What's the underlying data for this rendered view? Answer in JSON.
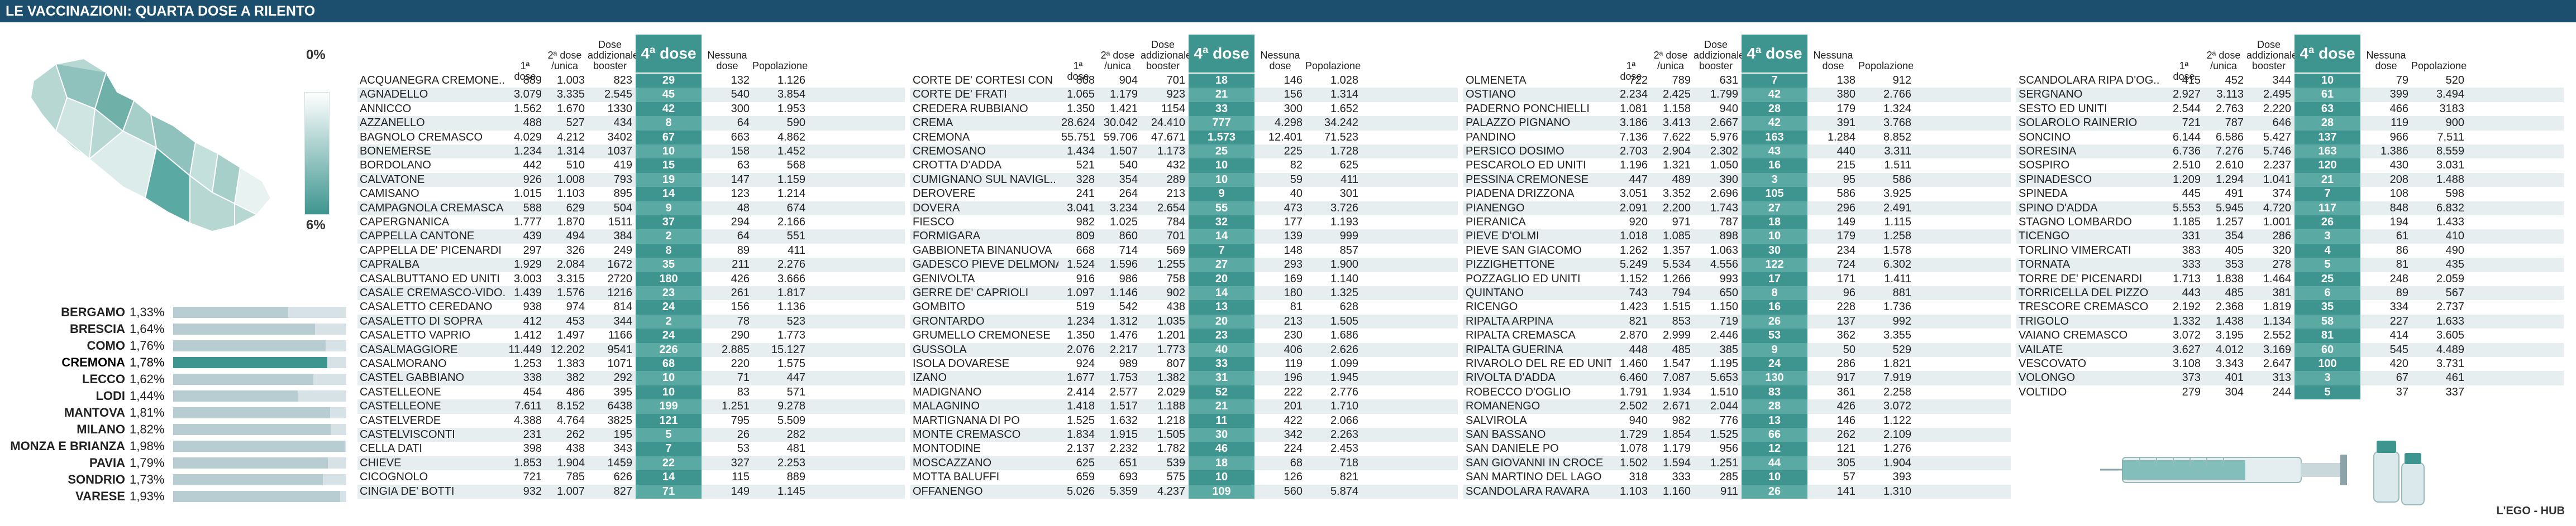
{
  "header": {
    "title": "LE VACCINAZIONI: QUARTA DOSE A RILENTO"
  },
  "legend": {
    "min": "0%",
    "max": "6%"
  },
  "credit": "L'EGO - HUB",
  "chart_data": {
    "type": "table",
    "columns": [
      "",
      "1ª dose",
      "2ª dose /unica",
      "Dose addizionale/ booster",
      "4ª dose",
      "Nessuna dose",
      "Popolazione"
    ],
    "provinces": [
      {
        "name": "BERGAMO",
        "value": "1,33%",
        "pct": 1.33
      },
      {
        "name": "BRESCIA",
        "value": "1,64%",
        "pct": 1.64
      },
      {
        "name": "COMO",
        "value": "1,76%",
        "pct": 1.76
      },
      {
        "name": "CREMONA",
        "value": "1,78%",
        "pct": 1.78,
        "highlight": true
      },
      {
        "name": "LECCO",
        "value": "1,62%",
        "pct": 1.62
      },
      {
        "name": "LODI",
        "value": "1,44%",
        "pct": 1.44
      },
      {
        "name": "MANTOVA",
        "value": "1,81%",
        "pct": 1.81
      },
      {
        "name": "MILANO",
        "value": "1,82%",
        "pct": 1.82
      },
      {
        "name": "MONZA E BRIANZA",
        "value": "1,98%",
        "pct": 1.98
      },
      {
        "name": "PAVIA",
        "value": "1,79%",
        "pct": 1.79
      },
      {
        "name": "SONDRIO",
        "value": "1,73%",
        "pct": 1.73
      },
      {
        "name": "VARESE",
        "value": "1,93%",
        "pct": 1.93
      }
    ],
    "blocks": [
      [
        [
          "Acquanegra Cremone..",
          "889",
          "1.003",
          "823",
          "29",
          "132",
          "1.126"
        ],
        [
          "Agnadello",
          "3.079",
          "3.335",
          "2.545",
          "45",
          "540",
          "3.854"
        ],
        [
          "Annicco",
          "1.562",
          "1.670",
          "1330",
          "42",
          "300",
          "1.953"
        ],
        [
          "Azzanello",
          "488",
          "527",
          "434",
          "8",
          "64",
          "590"
        ],
        [
          "Bagnolo Cremasco",
          "4.029",
          "4.212",
          "3402",
          "67",
          "663",
          "4.862"
        ],
        [
          "Bonemerse",
          "1.234",
          "1.314",
          "1037",
          "10",
          "158",
          "1.452"
        ],
        [
          "Bordolano",
          "442",
          "510",
          "419",
          "15",
          "63",
          "568"
        ],
        [
          "Calvatone",
          "926",
          "1.008",
          "793",
          "19",
          "147",
          "1.159"
        ],
        [
          "Camisano",
          "1.015",
          "1.103",
          "895",
          "14",
          "123",
          "1.214"
        ],
        [
          "Campagnola Cremasca",
          "588",
          "629",
          "504",
          "9",
          "48",
          "674"
        ],
        [
          "Capergnanica",
          "1.777",
          "1.870",
          "1511",
          "37",
          "294",
          "2.166"
        ],
        [
          "Cappella Cantone",
          "439",
          "494",
          "384",
          "2",
          "64",
          "551"
        ],
        [
          "Cappella de' Picenardi",
          "297",
          "326",
          "249",
          "8",
          "89",
          "411"
        ],
        [
          "Capralba",
          "1.929",
          "2.084",
          "1672",
          "35",
          "211",
          "2.276"
        ],
        [
          "Casalbuttano ed Uniti",
          "3.003",
          "3.315",
          "2720",
          "180",
          "426",
          "3.666"
        ],
        [
          "Casale Cremasco-Vido..",
          "1.439",
          "1.576",
          "1216",
          "23",
          "261",
          "1.817"
        ],
        [
          "Casaletto Ceredano",
          "938",
          "974",
          "814",
          "24",
          "156",
          "1.136"
        ],
        [
          "Casaletto di Sopra",
          "412",
          "453",
          "344",
          "2",
          "78",
          "523"
        ],
        [
          "Casaletto Vaprio",
          "1.412",
          "1.497",
          "1166",
          "24",
          "290",
          "1.773"
        ],
        [
          "Casalmaggiore",
          "11.449",
          "12.202",
          "9541",
          "226",
          "2.885",
          "15.127"
        ],
        [
          "Casalmorano",
          "1.253",
          "1.383",
          "1071",
          "68",
          "220",
          "1.575"
        ],
        [
          "Castel Gabbiano",
          "338",
          "382",
          "292",
          "10",
          "71",
          "447"
        ],
        [
          "Castelleone",
          "454",
          "486",
          "395",
          "10",
          "83",
          "571"
        ],
        [
          "Castelleone",
          "7.611",
          "8.152",
          "6438",
          "199",
          "1.251",
          "9.278"
        ],
        [
          "Castelverde",
          "4.388",
          "4.764",
          "3825",
          "121",
          "795",
          "5.509"
        ],
        [
          "Castelvisconti",
          "231",
          "262",
          "195",
          "5",
          "26",
          "282"
        ],
        [
          "Cella Dati",
          "398",
          "438",
          "343",
          "7",
          "53",
          "481"
        ],
        [
          "Chieve",
          "1.853",
          "1.904",
          "1459",
          "22",
          "327",
          "2.253"
        ],
        [
          "Cicognolo",
          "721",
          "785",
          "626",
          "14",
          "115",
          "889"
        ],
        [
          "Cingia de' Botti",
          "932",
          "1.007",
          "827",
          "71",
          "149",
          "1.145"
        ]
      ],
      [
        [
          "Corte de' Cortesi con",
          "808",
          "904",
          "701",
          "18",
          "146",
          "1.028"
        ],
        [
          "Corte de' Frati",
          "1.065",
          "1.179",
          "923",
          "21",
          "156",
          "1.314"
        ],
        [
          "Credera Rubbiano",
          "1.350",
          "1.421",
          "1154",
          "33",
          "300",
          "1.652"
        ],
        [
          "Crema",
          "28.624",
          "30.042",
          "24.410",
          "777",
          "4.298",
          "34.242"
        ],
        [
          "Cremona",
          "55.751",
          "59.706",
          "47.671",
          "1.573",
          "12.401",
          "71.523"
        ],
        [
          "Cremosano",
          "1.434",
          "1.507",
          "1.173",
          "25",
          "225",
          "1.728"
        ],
        [
          "Crotta d'Adda",
          "521",
          "540",
          "432",
          "10",
          "82",
          "625"
        ],
        [
          "Cumignano sul Navigl..",
          "328",
          "354",
          "289",
          "10",
          "59",
          "411"
        ],
        [
          "Derovere",
          "241",
          "264",
          "213",
          "9",
          "40",
          "301"
        ],
        [
          "Dovera",
          "3.041",
          "3.234",
          "2.654",
          "55",
          "473",
          "3.726"
        ],
        [
          "Fiesco",
          "982",
          "1.025",
          "784",
          "32",
          "177",
          "1.193"
        ],
        [
          "Formigara",
          "809",
          "860",
          "701",
          "14",
          "139",
          "999"
        ],
        [
          "Gabbioneta Binanuova",
          "668",
          "714",
          "569",
          "7",
          "148",
          "857"
        ],
        [
          "Gadesco Pieve Delmona",
          "1.524",
          "1.596",
          "1.255",
          "27",
          "293",
          "1.900"
        ],
        [
          "Genivolta",
          "916",
          "986",
          "758",
          "20",
          "169",
          "1.140"
        ],
        [
          "Gerre de' Caprioli",
          "1.097",
          "1.146",
          "902",
          "14",
          "180",
          "1.325"
        ],
        [
          "Gombito",
          "519",
          "542",
          "438",
          "13",
          "81",
          "628"
        ],
        [
          "Grontardo",
          "1.234",
          "1.312",
          "1.035",
          "20",
          "213",
          "1.505"
        ],
        [
          "Grumello Cremonese",
          "1.350",
          "1.476",
          "1.201",
          "23",
          "230",
          "1.686"
        ],
        [
          "Gussola",
          "2.076",
          "2.217",
          "1.773",
          "40",
          "406",
          "2.626"
        ],
        [
          "Isola Dovarese",
          "924",
          "989",
          "807",
          "33",
          "119",
          "1.099"
        ],
        [
          "Izano",
          "1.677",
          "1.753",
          "1.382",
          "31",
          "196",
          "1.945"
        ],
        [
          "Madignano",
          "2.414",
          "2.577",
          "2.029",
          "52",
          "222",
          "2.776"
        ],
        [
          "Malagnino",
          "1.418",
          "1.517",
          "1.188",
          "21",
          "201",
          "1.710"
        ],
        [
          "Martignana di Po",
          "1.525",
          "1.632",
          "1.218",
          "11",
          "422",
          "2.066"
        ],
        [
          "Monte Cremasco",
          "1.834",
          "1.915",
          "1.505",
          "30",
          "342",
          "2.263"
        ],
        [
          "Montodine",
          "2.137",
          "2.232",
          "1.782",
          "46",
          "224",
          "2.453"
        ],
        [
          "Moscazzano",
          "625",
          "651",
          "539",
          "18",
          "68",
          "718"
        ],
        [
          "Motta Baluffi",
          "659",
          "693",
          "575",
          "10",
          "126",
          "821"
        ],
        [
          "Offanengo",
          "5.026",
          "5.359",
          "4.237",
          "109",
          "560",
          "5.874"
        ]
      ],
      [
        [
          "Olmeneta",
          "722",
          "789",
          "631",
          "7",
          "138",
          "912"
        ],
        [
          "Ostiano",
          "2.234",
          "2.425",
          "1.799",
          "42",
          "380",
          "2.766"
        ],
        [
          "Paderno Ponchielli",
          "1.081",
          "1.158",
          "940",
          "28",
          "179",
          "1.324"
        ],
        [
          "Palazzo Pignano",
          "3.186",
          "3.413",
          "2.667",
          "42",
          "391",
          "3.768"
        ],
        [
          "Pandino",
          "7.136",
          "7.622",
          "5.976",
          "163",
          "1.284",
          "8.852"
        ],
        [
          "Persico Dosimo",
          "2.703",
          "2.904",
          "2.302",
          "43",
          "440",
          "3.311"
        ],
        [
          "Pescarolo ed Uniti",
          "1.196",
          "1.321",
          "1.050",
          "16",
          "215",
          "1.511"
        ],
        [
          "Pessina Cremonese",
          "447",
          "489",
          "390",
          "3",
          "95",
          "586"
        ],
        [
          "Piadena Drizzona",
          "3.051",
          "3.352",
          "2.696",
          "105",
          "586",
          "3.925"
        ],
        [
          "Pianengo",
          "2.091",
          "2.200",
          "1.743",
          "27",
          "296",
          "2.491"
        ],
        [
          "Pieranica",
          "920",
          "971",
          "787",
          "18",
          "149",
          "1.115"
        ],
        [
          "Pieve d'Olmi",
          "1.018",
          "1.085",
          "898",
          "10",
          "179",
          "1.258"
        ],
        [
          "Pieve San Giacomo",
          "1.262",
          "1.357",
          "1.063",
          "30",
          "234",
          "1.578"
        ],
        [
          "Pizzighettone",
          "5.249",
          "5.534",
          "4.556",
          "122",
          "724",
          "6.302"
        ],
        [
          "Pozzaglio ed Uniti",
          "1.152",
          "1.266",
          "993",
          "17",
          "171",
          "1.411"
        ],
        [
          "Quintano",
          "743",
          "794",
          "650",
          "8",
          "96",
          "881"
        ],
        [
          "Ricengo",
          "1.423",
          "1.515",
          "1.150",
          "16",
          "228",
          "1.736"
        ],
        [
          "Ripalta Arpina",
          "821",
          "853",
          "719",
          "26",
          "137",
          "992"
        ],
        [
          "Ripalta Cremasca",
          "2.870",
          "2.999",
          "2.446",
          "53",
          "362",
          "3.355"
        ],
        [
          "Ripalta Guerina",
          "448",
          "485",
          "385",
          "9",
          "50",
          "529"
        ],
        [
          "Rivarolo del Re ed Uniti",
          "1.460",
          "1.547",
          "1.195",
          "24",
          "286",
          "1.821"
        ],
        [
          "Rivolta d'Adda",
          "6.460",
          "7.087",
          "5.653",
          "130",
          "917",
          "7.919"
        ],
        [
          "Robecco d'Oglio",
          "1.791",
          "1.934",
          "1.510",
          "83",
          "361",
          "2.258"
        ],
        [
          "Romanengo",
          "2.502",
          "2.671",
          "2.044",
          "28",
          "426",
          "3.072"
        ],
        [
          "Salvirola",
          "940",
          "982",
          "776",
          "13",
          "146",
          "1.122"
        ],
        [
          "San Bassano",
          "1.729",
          "1.854",
          "1.525",
          "66",
          "262",
          "2.109"
        ],
        [
          "San Daniele Po",
          "1.078",
          "1.179",
          "956",
          "12",
          "121",
          "1.276"
        ],
        [
          "San Giovanni in Croce",
          "1.502",
          "1.594",
          "1.251",
          "44",
          "305",
          "1.904"
        ],
        [
          "San Martino del Lago",
          "318",
          "333",
          "285",
          "10",
          "57",
          "393"
        ],
        [
          "Scandolara Ravara",
          "1.103",
          "1.160",
          "911",
          "26",
          "141",
          "1.310"
        ]
      ],
      [
        [
          "Scandolara Ripa d'Og..",
          "415",
          "452",
          "344",
          "10",
          "79",
          "520"
        ],
        [
          "Sergnano",
          "2.927",
          "3.113",
          "2.495",
          "61",
          "399",
          "3.494"
        ],
        [
          "Sesto ed Uniti",
          "2.544",
          "2.763",
          "2.220",
          "63",
          "466",
          "3183"
        ],
        [
          "Solarolo Rainerio",
          "721",
          "787",
          "646",
          "28",
          "119",
          "900"
        ],
        [
          "Soncino",
          "6.144",
          "6.586",
          "5.427",
          "137",
          "966",
          "7.511"
        ],
        [
          "Soresina",
          "6.736",
          "7.276",
          "5.746",
          "163",
          "1.386",
          "8.559"
        ],
        [
          "Sospiro",
          "2.510",
          "2.610",
          "2.237",
          "120",
          "430",
          "3.031"
        ],
        [
          "Spinadesco",
          "1.209",
          "1.294",
          "1.041",
          "21",
          "208",
          "1.488"
        ],
        [
          "Spineda",
          "445",
          "491",
          "374",
          "7",
          "108",
          "598"
        ],
        [
          "Spino d'Adda",
          "5.553",
          "5.945",
          "4.720",
          "117",
          "848",
          "6.832"
        ],
        [
          "Stagno Lombardo",
          "1.185",
          "1.257",
          "1.001",
          "26",
          "194",
          "1.433"
        ],
        [
          "Ticengo",
          "331",
          "354",
          "286",
          "3",
          "61",
          "410"
        ],
        [
          "Torlino Vimercati",
          "383",
          "405",
          "320",
          "4",
          "86",
          "490"
        ],
        [
          "Tornata",
          "333",
          "353",
          "278",
          "5",
          "81",
          "435"
        ],
        [
          "Torre de' Picenardi",
          "1.713",
          "1.838",
          "1.464",
          "25",
          "248",
          "2.059"
        ],
        [
          "Torricella del Pizzo",
          "443",
          "485",
          "381",
          "6",
          "89",
          "567"
        ],
        [
          "Trescore Cremasco",
          "2.192",
          "2.368",
          "1.819",
          "35",
          "334",
          "2.737"
        ],
        [
          "Trigolo",
          "1.332",
          "1.438",
          "1.134",
          "58",
          "227",
          "1.633"
        ],
        [
          "Vaiano Cremasco",
          "3.072",
          "3.195",
          "2.552",
          "81",
          "414",
          "3.605"
        ],
        [
          "Vailate",
          "3.627",
          "4.012",
          "3.169",
          "60",
          "545",
          "4.489"
        ],
        [
          "Vescovato",
          "3.108",
          "3.343",
          "2.647",
          "100",
          "420",
          "3.731"
        ],
        [
          "Volongo",
          "373",
          "401",
          "313",
          "3",
          "67",
          "461"
        ],
        [
          "Voltido",
          "279",
          "304",
          "244",
          "5",
          "37",
          "337"
        ]
      ]
    ]
  }
}
